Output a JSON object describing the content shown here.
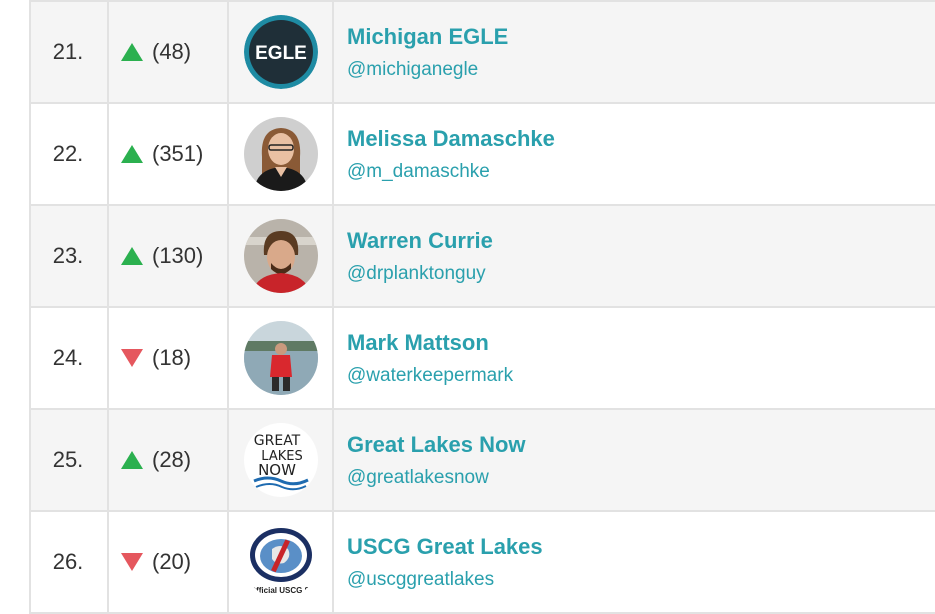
{
  "colors": {
    "accent": "#2aa0ad",
    "up": "#2bb04f",
    "down": "#e5575e"
  },
  "rows": [
    {
      "rank": "21.",
      "trend": "up",
      "change": "(48)",
      "name": "Michigan EGLE",
      "handle": "@michiganegle",
      "avatar_icon": "egle-logo-icon",
      "avatar_text": "EGLE"
    },
    {
      "rank": "22.",
      "trend": "up",
      "change": "(351)",
      "name": "Melissa Damaschke",
      "handle": "@m_damaschke",
      "avatar_icon": "profile-photo-icon"
    },
    {
      "rank": "23.",
      "trend": "up",
      "change": "(130)",
      "name": "Warren Currie",
      "handle": "@drplanktonguy",
      "avatar_icon": "profile-photo-icon"
    },
    {
      "rank": "24.",
      "trend": "down",
      "change": "(18)",
      "name": "Mark Mattson",
      "handle": "@waterkeepermark",
      "avatar_icon": "profile-photo-icon"
    },
    {
      "rank": "25.",
      "trend": "up",
      "change": "(28)",
      "name": "Great Lakes Now",
      "handle": "@greatlakesnow",
      "avatar_icon": "great-lakes-now-logo-icon",
      "avatar_lines": [
        "GREAT",
        "LAKES",
        "NOW"
      ]
    },
    {
      "rank": "26.",
      "trend": "down",
      "change": "(20)",
      "name": "USCG Great Lakes",
      "handle": "@uscggreatlakes",
      "avatar_icon": "uscg-seal-icon",
      "avatar_caption": "Official USCG Si"
    }
  ]
}
